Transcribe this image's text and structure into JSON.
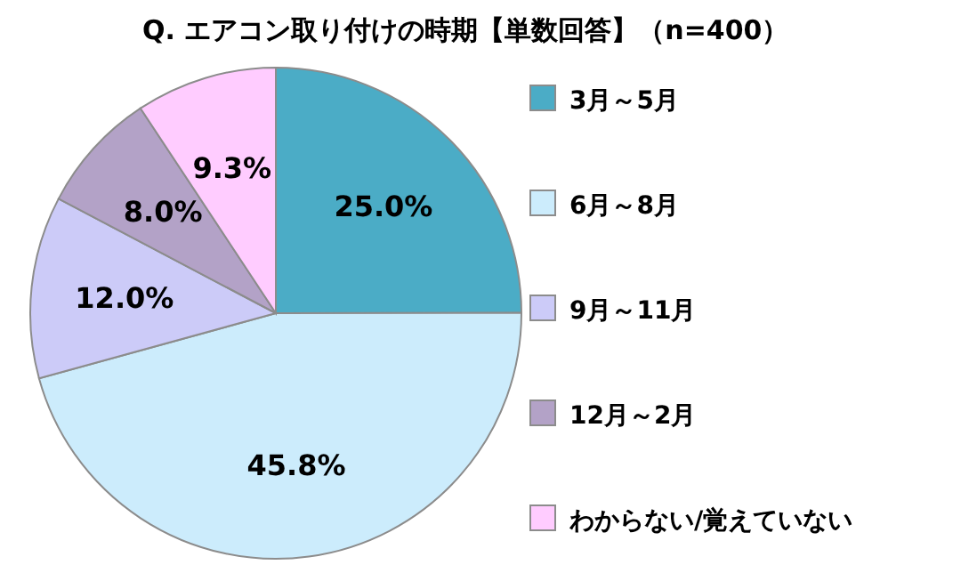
{
  "chart_data": {
    "type": "pie",
    "title": "Q.  エアコン取り付けの時期【単数回答】（n=400）",
    "categories": [
      "3月～5月",
      "6月～8月",
      "9月～11月",
      "12月～2月",
      "わからない/覚えていない"
    ],
    "values": [
      25.0,
      45.8,
      12.0,
      8.0,
      9.3
    ],
    "value_labels": [
      "25.0%",
      "45.8%",
      "12.0%",
      "8.0%",
      "9.3%"
    ],
    "colors": [
      "#4bacc6",
      "#ccecfc",
      "#cccbf8",
      "#b3a2c7",
      "#ffccff"
    ],
    "legend": "right"
  }
}
